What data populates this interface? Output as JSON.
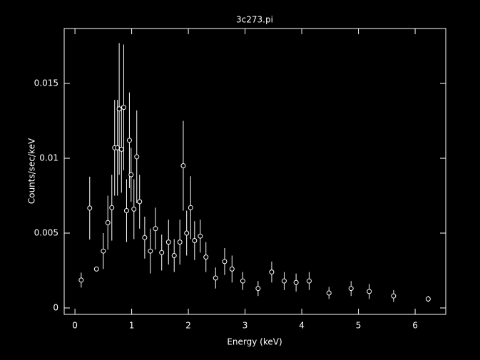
{
  "chart_data": {
    "type": "scatter",
    "title": "3c273.pi",
    "x_label": "Energy (keV)",
    "y_label": "Counts/sec/keV",
    "color": "#ffffff",
    "x": [
      0.11,
      0.26,
      0.38,
      0.5,
      0.58,
      0.65,
      0.7,
      0.75,
      0.78,
      0.82,
      0.86,
      0.91,
      0.96,
      0.99,
      1.04,
      1.09,
      1.14,
      1.23,
      1.33,
      1.42,
      1.53,
      1.65,
      1.75,
      1.85,
      1.91,
      1.97,
      2.04,
      2.11,
      2.21,
      2.31,
      2.48,
      2.64,
      2.77,
      2.96,
      3.23,
      3.47,
      3.69,
      3.9,
      4.13,
      4.48,
      4.87,
      5.19,
      5.62,
      6.23
    ],
    "values": [
      0.00186,
      0.00667,
      0.0026,
      0.0038,
      0.0057,
      0.0067,
      0.0107,
      0.0107,
      0.0133,
      0.0106,
      0.0134,
      0.0065,
      0.0112,
      0.0089,
      0.0066,
      0.0101,
      0.0071,
      0.0047,
      0.0038,
      0.0053,
      0.0037,
      0.0044,
      0.0035,
      0.0044,
      0.0095,
      0.005,
      0.0067,
      0.0045,
      0.0048,
      0.0034,
      0.002,
      0.0031,
      0.0026,
      0.0018,
      0.0013,
      0.0024,
      0.0018,
      0.0017,
      0.0018,
      0.001,
      0.0013,
      0.0011,
      0.0008,
      0.0006
    ],
    "yerr": [
      0.0005,
      0.0021,
      0,
      0.0012,
      0.0018,
      0.0022,
      0.0032,
      0.0032,
      0.0044,
      0.0029,
      0.0042,
      0.0021,
      0.0032,
      0.0018,
      0.002,
      0.0031,
      0.0018,
      0.0014,
      0.0015,
      0.0014,
      0.0012,
      0.0015,
      0.0011,
      0.0015,
      0.003,
      0.0015,
      0.0021,
      0.0013,
      0.0011,
      0.001,
      0.0007,
      0.0009,
      0.0009,
      0.0006,
      0.0005,
      0.0007,
      0.0006,
      0.0006,
      0.0006,
      0.0004,
      0.0005,
      0.0005,
      0.0004,
      0.0002
    ],
    "xlim": [
      -0.19,
      6.54
    ],
    "ylim": [
      -0.00043,
      0.01867
    ],
    "xticks": [
      0,
      1,
      2,
      3,
      4,
      5,
      6
    ],
    "yticks": [
      0,
      0.005,
      0.01,
      0.015
    ]
  }
}
